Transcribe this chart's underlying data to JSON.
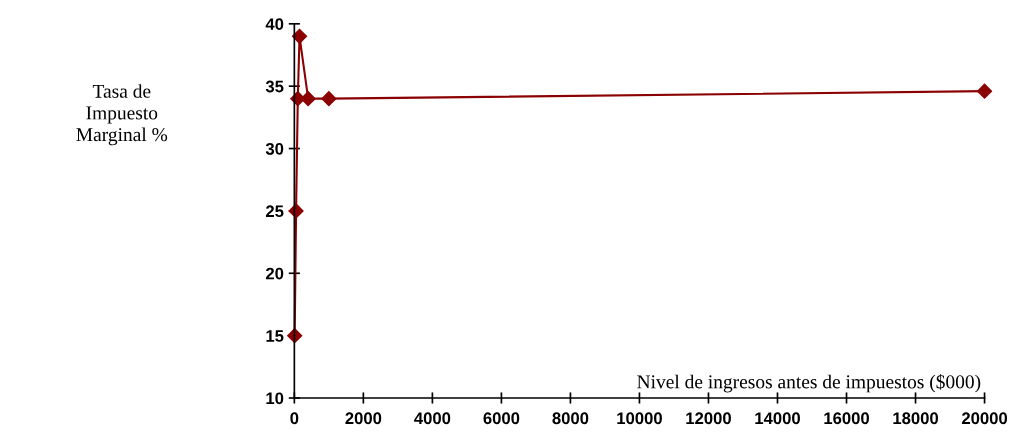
{
  "chart_data": {
    "type": "line",
    "xlabel": "Nivel de ingresos antes de impuestos ($000)",
    "annotations": [
      "Tasa de\nImpuesto\nMarginal %"
    ],
    "x": [
      10,
      50,
      100,
      150,
      400,
      1000,
      20000
    ],
    "series": [
      {
        "color": "#8b0000",
        "values": [
          15,
          25,
          34,
          39,
          34,
          34,
          34.6
        ]
      }
    ],
    "xlim": [
      0,
      20000
    ],
    "xticks": [
      0,
      2000,
      4000,
      6000,
      8000,
      10000,
      12000,
      14000,
      16000,
      18000,
      20000
    ],
    "ylim": [
      10,
      40
    ],
    "yticks": [
      10,
      15,
      20,
      25,
      30,
      35,
      40
    ],
    "marker": "diamond",
    "line_style": "solid",
    "grid": false,
    "legend": false
  }
}
